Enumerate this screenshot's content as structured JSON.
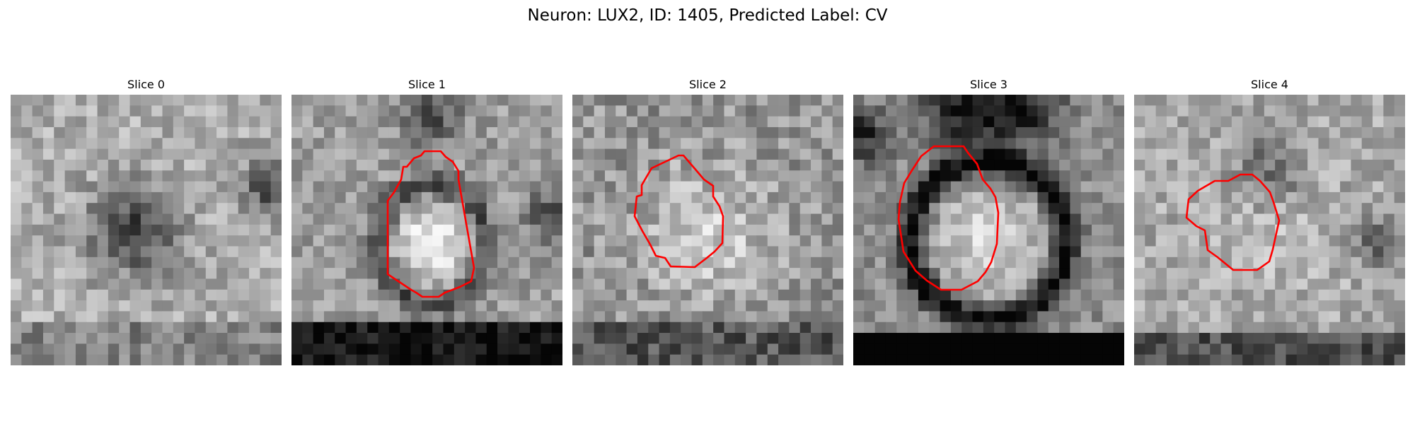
{
  "figure": {
    "title": "Neuron: LUX2, ID: 1405, Predicted Label: CV",
    "outline_color": "#ff0000",
    "colormap": "grayscale"
  },
  "panels": [
    {
      "label": "Slice 0",
      "has_outline": false,
      "pattern": "dark-blob-left"
    },
    {
      "label": "Slice 1",
      "has_outline": true,
      "pattern": "bright-cell-dark-ring"
    },
    {
      "label": "Slice 2",
      "has_outline": true,
      "pattern": "bright-cell-noisy"
    },
    {
      "label": "Slice 3",
      "has_outline": true,
      "pattern": "bright-cell-strong-dark-ring"
    },
    {
      "label": "Slice 4",
      "has_outline": true,
      "pattern": "faint-cell"
    }
  ]
}
